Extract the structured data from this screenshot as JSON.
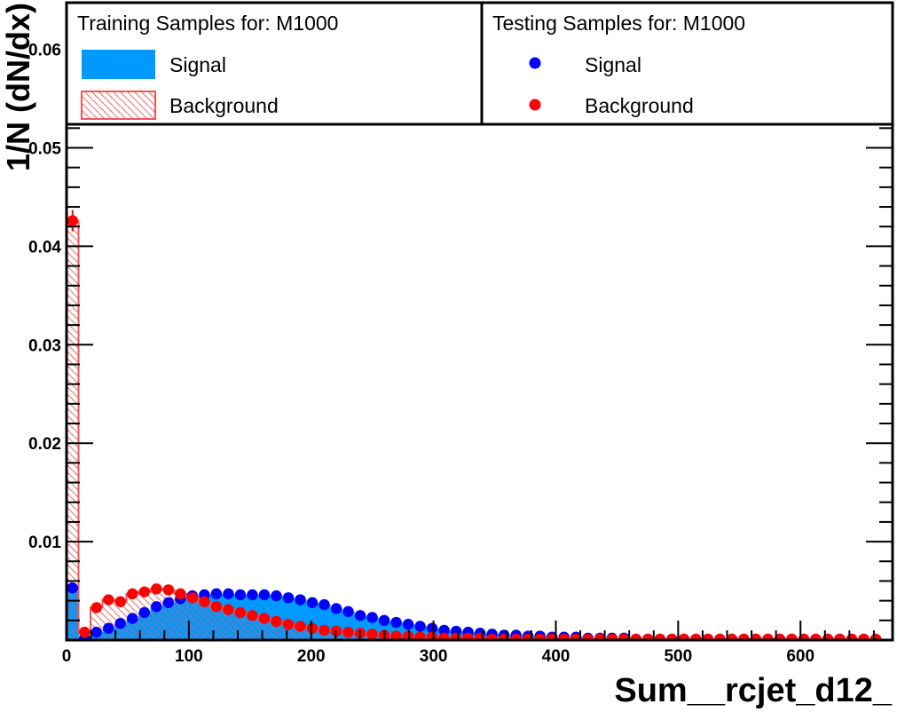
{
  "chart_data": {
    "type": "histogram",
    "title": "",
    "xlabel": "Sum__rcjet_d12_",
    "ylabel": "1/N (dN/dx)",
    "xlim": [
      0,
      675
    ],
    "ylim": [
      0,
      0.0655
    ],
    "x_ticks": [
      "0",
      "100",
      "200",
      "300",
      "400",
      "500",
      "600"
    ],
    "y_ticks": [
      "0.01",
      "0.02",
      "0.03",
      "0.04",
      "0.05",
      "0.06"
    ],
    "bin_width": 9.8,
    "legend_training": {
      "header": "Training Samples for: M1000",
      "signal_label": "Signal",
      "background_label": "Background"
    },
    "legend_testing": {
      "header": "Testing Samples for: M1000",
      "signal_label": "Signal",
      "background_label": "Background"
    },
    "colors": {
      "signal_fill": "#0099ff",
      "background_line": "#ee5555",
      "signal_marker": "#0000ff",
      "background_marker": "#ff0000"
    },
    "bins_x": [
      4.9,
      14.7,
      24.5,
      34.3,
      44.1,
      53.9,
      63.7,
      73.5,
      83.3,
      93.1,
      102.9,
      112.7,
      122.5,
      132.3,
      142.1,
      151.9,
      161.7,
      171.5,
      181.3,
      191.1,
      200.9,
      210.7,
      220.5,
      230.3,
      240.1,
      249.9,
      259.7,
      269.5,
      279.3,
      289.1,
      298.9,
      308.7,
      318.5,
      328.3,
      338.1,
      347.9,
      357.7,
      367.5,
      377.3,
      387.1,
      396.9,
      406.7,
      416.5,
      426.3,
      436.1,
      445.9,
      455.7,
      465.5,
      475.3,
      485.1,
      494.9,
      504.7,
      514.5,
      524.3,
      534.1,
      543.9,
      553.7,
      563.5,
      573.3,
      583.1,
      592.9,
      602.7,
      612.5,
      622.3,
      632.1,
      641.9,
      651.7,
      661.5
    ],
    "series": [
      {
        "name": "Signal",
        "values": [
          0.0053,
          0.0002,
          0.0008,
          0.0012,
          0.0017,
          0.0022,
          0.0028,
          0.0034,
          0.0038,
          0.0042,
          0.0045,
          0.0046,
          0.0047,
          0.0047,
          0.0046,
          0.0046,
          0.0046,
          0.0045,
          0.0043,
          0.0041,
          0.0038,
          0.0036,
          0.0032,
          0.0029,
          0.0025,
          0.0023,
          0.002,
          0.0018,
          0.0016,
          0.0014,
          0.0012,
          0.001,
          0.0009,
          0.0008,
          0.0007,
          0.0006,
          0.0005,
          0.0005,
          0.0004,
          0.0004,
          0.0003,
          0.0003,
          0.0003,
          0.0002,
          0.0002,
          0.0002,
          0.0002,
          0.0001,
          0.0001,
          0.0001,
          0.0001,
          0.0001,
          0.0001,
          0.0001,
          0.0001,
          0.0001,
          0.0001,
          0.0001,
          0.0001,
          0.0001,
          0.0001,
          0.0001,
          0.0001,
          0.0001,
          0.0001,
          0.0001,
          0.0001,
          0.0001
        ]
      },
      {
        "name": "Background",
        "values": [
          0.0426,
          0.0008,
          0.0033,
          0.0041,
          0.0039,
          0.0047,
          0.0049,
          0.0052,
          0.0051,
          0.0047,
          0.0043,
          0.0039,
          0.0034,
          0.0031,
          0.0028,
          0.0025,
          0.0022,
          0.0019,
          0.0016,
          0.0014,
          0.0012,
          0.001,
          0.0009,
          0.0008,
          0.0007,
          0.0006,
          0.0005,
          0.0004,
          0.0004,
          0.0003,
          0.0003,
          0.0002,
          0.0002,
          0.0002,
          0.0002,
          0.0001,
          0.0001,
          0.0001,
          0.0001,
          0.0001,
          0.0001,
          0.0001,
          0.0001,
          0.0001,
          0.0001,
          0.0001,
          0.0001,
          0.0001,
          0.0001,
          0.0001,
          0.0001,
          0.0001,
          0.0001,
          0.0001,
          0.0001,
          0.0001,
          0.0001,
          0.0001,
          0.0001,
          0.0001,
          0.0001,
          0.0001,
          0.0001,
          0.0001,
          0.0001,
          0.0001,
          0.0001,
          0.0001
        ]
      }
    ]
  }
}
